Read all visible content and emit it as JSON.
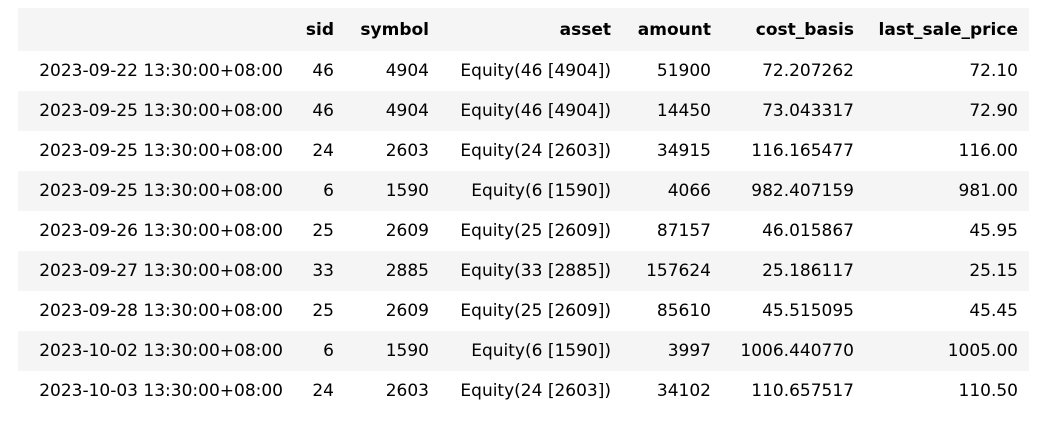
{
  "table": {
    "index_header": "",
    "columns": [
      "sid",
      "symbol",
      "asset",
      "amount",
      "cost_basis",
      "last_sale_price"
    ],
    "rows": [
      {
        "index": "2023-09-22 13:30:00+08:00",
        "cells": [
          "46",
          "4904",
          "Equity(46 [4904])",
          "51900",
          "72.207262",
          "72.10"
        ]
      },
      {
        "index": "2023-09-25 13:30:00+08:00",
        "cells": [
          "46",
          "4904",
          "Equity(46 [4904])",
          "14450",
          "73.043317",
          "72.90"
        ]
      },
      {
        "index": "2023-09-25 13:30:00+08:00",
        "cells": [
          "24",
          "2603",
          "Equity(24 [2603])",
          "34915",
          "116.165477",
          "116.00"
        ]
      },
      {
        "index": "2023-09-25 13:30:00+08:00",
        "cells": [
          "6",
          "1590",
          "Equity(6 [1590])",
          "4066",
          "982.407159",
          "981.00"
        ]
      },
      {
        "index": "2023-09-26 13:30:00+08:00",
        "cells": [
          "25",
          "2609",
          "Equity(25 [2609])",
          "87157",
          "46.015867",
          "45.95"
        ]
      },
      {
        "index": "2023-09-27 13:30:00+08:00",
        "cells": [
          "33",
          "2885",
          "Equity(33 [2885])",
          "157624",
          "25.186117",
          "25.15"
        ]
      },
      {
        "index": "2023-09-28 13:30:00+08:00",
        "cells": [
          "25",
          "2609",
          "Equity(25 [2609])",
          "85610",
          "45.515095",
          "45.45"
        ]
      },
      {
        "index": "2023-10-02 13:30:00+08:00",
        "cells": [
          "6",
          "1590",
          "Equity(6 [1590])",
          "3997",
          "1006.440770",
          "1005.00"
        ]
      },
      {
        "index": "2023-10-03 13:30:00+08:00",
        "cells": [
          "24",
          "2603",
          "Equity(24 [2603])",
          "34102",
          "110.657517",
          "110.50"
        ]
      }
    ]
  },
  "colors": {
    "header_background": "#f5f5f5",
    "stripe_background": "#f5f5f5",
    "text": "#000000"
  }
}
